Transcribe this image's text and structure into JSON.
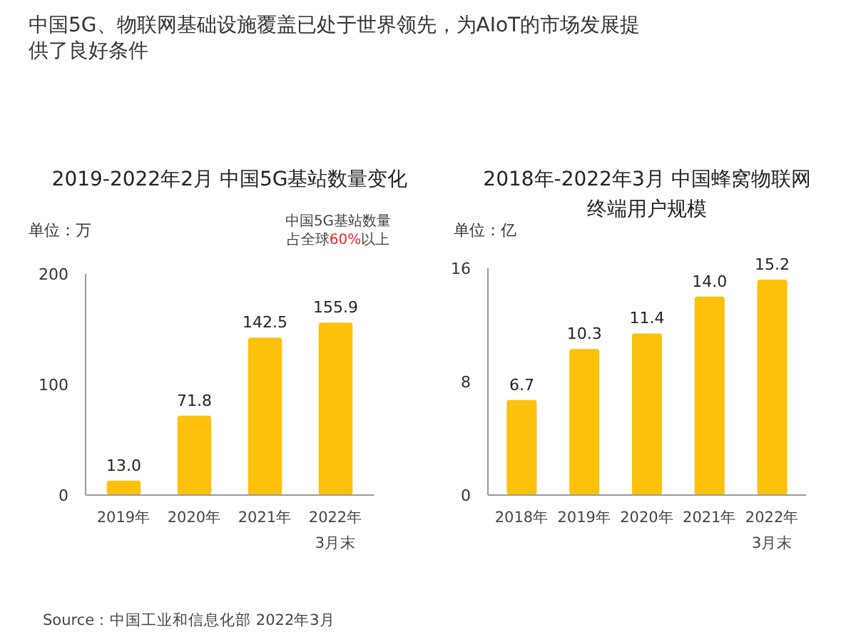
{
  "chart_data": [
    {
      "type": "bar",
      "title": "2019-2022年2月 中国5G基站数量变化",
      "ylabel": "单位：万",
      "categories": [
        "2019年",
        "2020年",
        "2021年",
        "2022年\n3月末"
      ],
      "values": [
        13.0,
        71.8,
        142.5,
        155.9
      ],
      "color": "#fdc10c",
      "ylim": [
        0,
        200
      ],
      "yticks": [
        0,
        100,
        200
      ],
      "data_labels": true,
      "value_labels": [
        "13.0",
        "71.8",
        "142.5",
        "155.9"
      ],
      "grid": false,
      "annotations": [
        "中国5G、物联网基础设施覆盖已处于世界领先，为AIoT的市场发展提供了良好条件",
        "中国5G基站数量占全球60%以上"
      ]
    },
    {
      "type": "bar",
      "title": "2018年-2022年3月 中国蜂窝物联网终端用户规模",
      "ylabel": "单位：亿",
      "categories": [
        "2018年",
        "2019年",
        "2020年",
        "2021年",
        "2022年\n3月末"
      ],
      "values": [
        6.7,
        10.3,
        11.4,
        14.0,
        15.2
      ],
      "color": "#fdc10c",
      "ylim": [
        0,
        16
      ],
      "yticks": [
        0,
        8,
        16
      ],
      "data_labels": true,
      "value_labels": [
        "6.7",
        "10.3",
        "11.4",
        "14.0",
        "15.2"
      ],
      "grid": false,
      "annotations": [
        "Source：中国工业和信息化部 2022年3月"
      ]
    }
  ]
}
